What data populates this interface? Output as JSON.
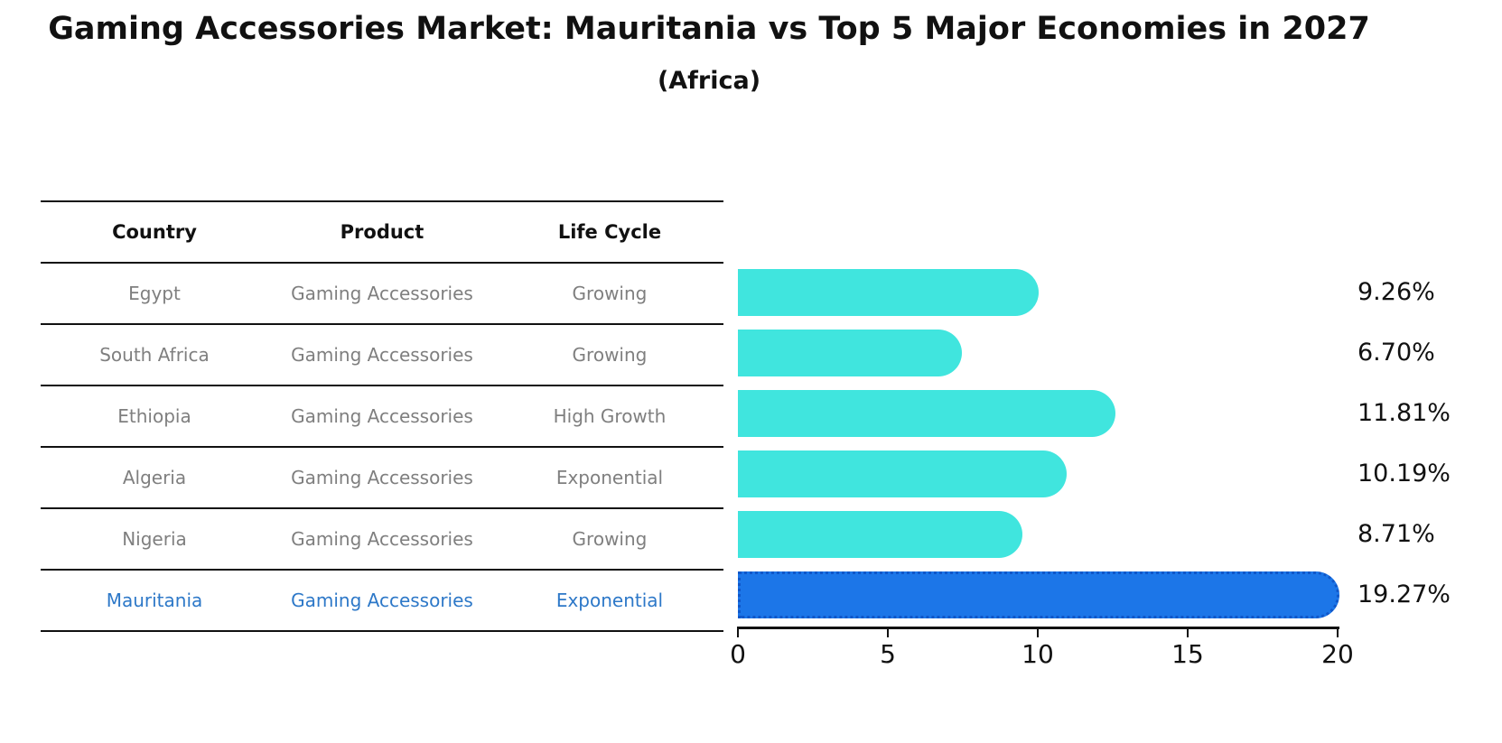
{
  "title": "Gaming Accessories Market: Mauritania vs Top 5 Major Economies in 2027",
  "subtitle": "(Africa)",
  "table": {
    "headers": [
      "Country",
      "Product",
      "Life Cycle"
    ],
    "rows": [
      {
        "country": "Egypt",
        "product": "Gaming Accessories",
        "life_cycle": "Growing",
        "highlighted": false
      },
      {
        "country": "South Africa",
        "product": "Gaming Accessories",
        "life_cycle": "Growing",
        "highlighted": false
      },
      {
        "country": "Ethiopia",
        "product": "Gaming Accessories",
        "life_cycle": "High Growth",
        "highlighted": false
      },
      {
        "country": "Algeria",
        "product": "Gaming Accessories",
        "life_cycle": "Exponential",
        "highlighted": false
      },
      {
        "country": "Nigeria",
        "product": "Gaming Accessories",
        "life_cycle": "Growing",
        "highlighted": false
      },
      {
        "country": "Mauritania",
        "product": "Gaming Accessories",
        "life_cycle": "Exponential",
        "highlighted": true
      }
    ]
  },
  "chart_data": {
    "type": "bar",
    "orientation": "horizontal",
    "title": "Gaming Accessories Market: Mauritania vs Top 5 Major Economies in 2027",
    "subtitle": "(Africa)",
    "categories": [
      "Egypt",
      "South Africa",
      "Ethiopia",
      "Algeria",
      "Nigeria",
      "Mauritania"
    ],
    "values": [
      9.26,
      6.7,
      11.81,
      10.19,
      8.71,
      19.27
    ],
    "value_labels": [
      "9.26%",
      "6.70%",
      "11.81%",
      "10.19%",
      "8.71%",
      "19.27%"
    ],
    "xlabel": "",
    "ylabel": "",
    "xlim": [
      0,
      20
    ],
    "xticks": [
      0,
      5,
      10,
      15,
      20
    ],
    "grid": false,
    "legend": false,
    "highlight_index": 5,
    "colors": {
      "bar": "#40e5de",
      "highlight_bar": "#1c76e8",
      "highlight_border": "#1057c9",
      "highlight_text": "#2d78c8",
      "muted_text": "#7f7f7f",
      "text": "#111111"
    }
  }
}
